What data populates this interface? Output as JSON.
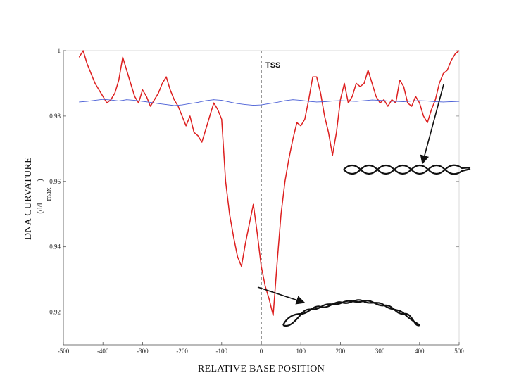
{
  "chart_data": {
    "type": "line",
    "xlabel": "RELATIVE BASE POSITION",
    "ylabel": "DNA CURVATURE",
    "ylabel_sub": "(d/l",
    "ylabel_sub_suffix": "max",
    "ylabel_close": ")",
    "annotation": "TSS",
    "tss_x": 0,
    "xlim": [
      -500,
      500
    ],
    "ylim": [
      0.91,
      1.0
    ],
    "x_ticks": [
      -500,
      -400,
      -300,
      -200,
      -100,
      0,
      100,
      200,
      300,
      400,
      500
    ],
    "y_ticks": [
      0.92,
      0.94,
      0.96,
      0.98,
      1
    ],
    "y_tick_labels": [
      "0.92",
      "0.94",
      "0.96",
      "0.98",
      "1"
    ],
    "grid": false,
    "series": [
      {
        "color": "#dd1f1f",
        "x": [
          -460,
          -450,
          -440,
          -430,
          -420,
          -410,
          -400,
          -390,
          -380,
          -370,
          -360,
          -350,
          -340,
          -330,
          -320,
          -310,
          -300,
          -290,
          -280,
          -270,
          -260,
          -250,
          -240,
          -230,
          -220,
          -210,
          -200,
          -190,
          -180,
          -170,
          -160,
          -150,
          -140,
          -130,
          -120,
          -110,
          -100,
          -90,
          -80,
          -70,
          -60,
          -50,
          -40,
          -30,
          -20,
          -10,
          0,
          10,
          20,
          30,
          40,
          50,
          60,
          70,
          80,
          90,
          100,
          110,
          120,
          130,
          140,
          150,
          160,
          170,
          180,
          190,
          200,
          210,
          220,
          230,
          240,
          250,
          260,
          270,
          280,
          290,
          300,
          310,
          320,
          330,
          340,
          350,
          360,
          370,
          380,
          390,
          400,
          410,
          420,
          430,
          440,
          450,
          460,
          470,
          480,
          490,
          500
        ],
        "values": [
          0.998,
          1.0,
          0.996,
          0.993,
          0.99,
          0.988,
          0.986,
          0.984,
          0.985,
          0.987,
          0.991,
          0.998,
          0.994,
          0.99,
          0.986,
          0.984,
          0.988,
          0.986,
          0.983,
          0.985,
          0.987,
          0.99,
          0.992,
          0.988,
          0.985,
          0.983,
          0.98,
          0.977,
          0.98,
          0.975,
          0.974,
          0.972,
          0.976,
          0.98,
          0.984,
          0.982,
          0.979,
          0.96,
          0.95,
          0.943,
          0.937,
          0.934,
          0.941,
          0.947,
          0.953,
          0.944,
          0.934,
          0.928,
          0.924,
          0.919,
          0.935,
          0.95,
          0.96,
          0.967,
          0.973,
          0.978,
          0.977,
          0.979,
          0.985,
          0.992,
          0.992,
          0.987,
          0.98,
          0.975,
          0.968,
          0.975,
          0.985,
          0.99,
          0.984,
          0.986,
          0.99,
          0.989,
          0.99,
          0.994,
          0.99,
          0.986,
          0.984,
          0.985,
          0.983,
          0.985,
          0.984,
          0.991,
          0.989,
          0.984,
          0.983,
          0.986,
          0.984,
          0.98,
          0.978,
          0.982,
          0.985,
          0.99,
          0.993,
          0.994,
          0.997,
          0.999,
          1.0
        ]
      },
      {
        "color": "#4a5fd6",
        "x": [
          -460,
          -440,
          -420,
          -400,
          -380,
          -360,
          -340,
          -320,
          -300,
          -280,
          -260,
          -240,
          -220,
          -200,
          -180,
          -160,
          -140,
          -120,
          -100,
          -80,
          -60,
          -40,
          -20,
          0,
          20,
          40,
          60,
          80,
          100,
          120,
          140,
          160,
          180,
          200,
          220,
          240,
          260,
          280,
          300,
          320,
          340,
          360,
          380,
          400,
          420,
          440,
          460,
          480,
          500
        ],
        "values": [
          0.9843,
          0.9845,
          0.9848,
          0.9851,
          0.9849,
          0.9846,
          0.985,
          0.9848,
          0.9845,
          0.9842,
          0.9838,
          0.9835,
          0.9832,
          0.9834,
          0.9838,
          0.9842,
          0.9847,
          0.985,
          0.9848,
          0.9843,
          0.9838,
          0.9835,
          0.9833,
          0.9834,
          0.9838,
          0.9842,
          0.9847,
          0.985,
          0.9848,
          0.9845,
          0.9843,
          0.9844,
          0.9846,
          0.9847,
          0.9846,
          0.9845,
          0.9847,
          0.9849,
          0.9848,
          0.9846,
          0.9845,
          0.9844,
          0.9846,
          0.9847,
          0.9846,
          0.9844,
          0.9843,
          0.9844,
          0.9845
        ]
      }
    ]
  }
}
